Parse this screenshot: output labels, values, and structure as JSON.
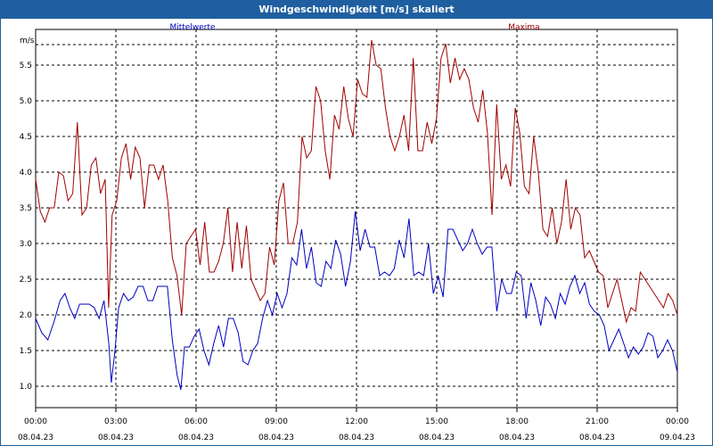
{
  "window": {
    "title": "Windgeschwindigkeit [m/s] skaliert"
  },
  "chart_data": {
    "type": "line",
    "ylabel": "m/s",
    "ylim": [
      0.7,
      6.0
    ],
    "y_ticks": [
      "1.0",
      "1.5",
      "2.0",
      "2.5",
      "3.0",
      "3.5",
      "4.0",
      "4.5",
      "5.0",
      "5.5"
    ],
    "y_tick_values": [
      1.0,
      1.5,
      2.0,
      2.5,
      3.0,
      3.5,
      4.0,
      4.5,
      5.0,
      5.5
    ],
    "x_ticks": [
      {
        "time": "00:00",
        "date": "08.04.23"
      },
      {
        "time": "03:00",
        "date": "08.04.23"
      },
      {
        "time": "06:00",
        "date": "08.04.23"
      },
      {
        "time": "09:00",
        "date": "08.04.23"
      },
      {
        "time": "12:00",
        "date": "08.04.23"
      },
      {
        "time": "15:00",
        "date": "08.04.23"
      },
      {
        "time": "18:00",
        "date": "08.04.23"
      },
      {
        "time": "21:00",
        "date": "08.04.23"
      },
      {
        "time": "00:00",
        "date": "09.04.23"
      }
    ],
    "x_range_hours": [
      0,
      24
    ],
    "grid": true,
    "series": [
      {
        "name": "Mittelwerte",
        "color": "#0000c0",
        "points": [
          [
            0,
            1.95
          ],
          [
            0.25,
            1.75
          ],
          [
            0.5,
            1.65
          ],
          [
            0.75,
            1.9
          ],
          [
            1.0,
            2.2
          ],
          [
            1.2,
            2.3
          ],
          [
            1.4,
            2.1
          ],
          [
            1.6,
            1.95
          ],
          [
            1.8,
            2.15
          ],
          [
            2.0,
            2.15
          ],
          [
            2.2,
            2.15
          ],
          [
            2.4,
            2.1
          ],
          [
            2.6,
            1.95
          ],
          [
            2.8,
            2.2
          ],
          [
            3.0,
            1.6
          ],
          [
            3.1,
            1.05
          ],
          [
            3.25,
            1.5
          ],
          [
            3.4,
            2.1
          ],
          [
            3.6,
            2.3
          ],
          [
            3.8,
            2.2
          ],
          [
            4.0,
            2.25
          ],
          [
            4.2,
            2.4
          ],
          [
            4.4,
            2.4
          ],
          [
            4.6,
            2.2
          ],
          [
            4.8,
            2.2
          ],
          [
            5.0,
            2.4
          ],
          [
            5.2,
            2.4
          ],
          [
            5.4,
            2.4
          ],
          [
            5.6,
            1.65
          ],
          [
            5.8,
            1.15
          ],
          [
            5.95,
            0.95
          ],
          [
            6.1,
            1.55
          ],
          [
            6.3,
            1.55
          ],
          [
            6.5,
            1.7
          ],
          [
            6.7,
            1.8
          ],
          [
            6.9,
            1.5
          ],
          [
            7.1,
            1.3
          ],
          [
            7.3,
            1.6
          ],
          [
            7.5,
            1.85
          ],
          [
            7.7,
            1.55
          ],
          [
            7.9,
            1.95
          ],
          [
            8.1,
            1.95
          ],
          [
            8.3,
            1.75
          ],
          [
            8.5,
            1.35
          ],
          [
            8.7,
            1.3
          ],
          [
            8.9,
            1.5
          ],
          [
            9.1,
            1.6
          ],
          [
            9.3,
            1.95
          ],
          [
            9.5,
            2.2
          ],
          [
            9.7,
            2.0
          ],
          [
            9.9,
            2.3
          ],
          [
            10.1,
            2.1
          ],
          [
            10.3,
            2.3
          ],
          [
            10.5,
            2.8
          ],
          [
            10.7,
            2.7
          ],
          [
            10.9,
            3.2
          ],
          [
            11.1,
            2.65
          ],
          [
            11.3,
            2.95
          ],
          [
            11.5,
            2.45
          ],
          [
            11.7,
            2.4
          ],
          [
            11.9,
            2.75
          ],
          [
            12.1,
            2.65
          ],
          [
            12.3,
            3.05
          ],
          [
            12.5,
            2.85
          ],
          [
            12.7,
            2.4
          ],
          [
            12.9,
            2.75
          ],
          [
            13.1,
            3.45
          ],
          [
            13.3,
            2.9
          ],
          [
            13.5,
            3.2
          ],
          [
            13.7,
            2.95
          ],
          [
            13.9,
            2.95
          ],
          [
            14.1,
            2.55
          ],
          [
            14.3,
            2.6
          ],
          [
            14.5,
            2.55
          ],
          [
            14.7,
            2.65
          ],
          [
            14.9,
            3.05
          ],
          [
            15.1,
            2.8
          ],
          [
            15.3,
            3.35
          ],
          [
            15.5,
            2.55
          ],
          [
            15.7,
            2.6
          ],
          [
            15.9,
            2.55
          ],
          [
            16.1,
            3.0
          ],
          [
            16.3,
            2.3
          ],
          [
            16.5,
            2.55
          ],
          [
            16.7,
            2.25
          ],
          [
            16.9,
            3.2
          ],
          [
            17.1,
            3.2
          ],
          [
            17.3,
            3.05
          ],
          [
            17.5,
            2.9
          ],
          [
            17.7,
            3.0
          ],
          [
            17.9,
            3.2
          ],
          [
            18.1,
            3.0
          ],
          [
            18.3,
            2.85
          ],
          [
            18.5,
            2.95
          ],
          [
            18.7,
            2.95
          ],
          [
            18.9,
            2.05
          ],
          [
            19.1,
            2.5
          ],
          [
            19.3,
            2.3
          ],
          [
            19.5,
            2.3
          ],
          [
            19.7,
            2.6
          ],
          [
            19.9,
            2.55
          ],
          [
            20.1,
            1.95
          ],
          [
            20.3,
            2.45
          ],
          [
            20.5,
            2.2
          ],
          [
            20.7,
            1.85
          ],
          [
            20.9,
            2.25
          ],
          [
            21.1,
            2.15
          ],
          [
            21.3,
            1.95
          ],
          [
            21.5,
            2.3
          ],
          [
            21.7,
            2.15
          ],
          [
            21.9,
            2.4
          ],
          [
            22.1,
            2.55
          ],
          [
            22.3,
            2.3
          ],
          [
            22.5,
            2.45
          ],
          [
            22.7,
            2.15
          ],
          [
            22.9,
            2.05
          ],
          [
            23.1,
            2.0
          ],
          [
            23.3,
            1.85
          ],
          [
            23.5,
            1.5
          ],
          [
            23.7,
            1.65
          ],
          [
            23.9,
            1.8
          ],
          [
            24.1,
            1.6
          ],
          [
            24.3,
            1.4
          ],
          [
            24.5,
            1.55
          ],
          [
            24.7,
            1.45
          ],
          [
            24.9,
            1.55
          ],
          [
            25.1,
            1.75
          ],
          [
            25.3,
            1.7
          ],
          [
            25.5,
            1.4
          ],
          [
            25.7,
            1.5
          ],
          [
            25.9,
            1.65
          ],
          [
            26.1,
            1.5
          ],
          [
            26.3,
            1.2
          ]
        ]
      },
      {
        "name": "Maxima",
        "color": "#a00000",
        "points": [
          [
            0,
            3.9
          ],
          [
            0.2,
            3.45
          ],
          [
            0.4,
            3.3
          ],
          [
            0.6,
            3.5
          ],
          [
            0.8,
            3.5
          ],
          [
            1.0,
            4.0
          ],
          [
            1.2,
            3.95
          ],
          [
            1.4,
            3.6
          ],
          [
            1.6,
            3.7
          ],
          [
            1.8,
            4.7
          ],
          [
            2.0,
            3.4
          ],
          [
            2.2,
            3.5
          ],
          [
            2.4,
            4.1
          ],
          [
            2.6,
            4.2
          ],
          [
            2.8,
            3.7
          ],
          [
            3.0,
            3.9
          ],
          [
            3.15,
            2.1
          ],
          [
            3.3,
            3.4
          ],
          [
            3.5,
            3.6
          ],
          [
            3.7,
            4.2
          ],
          [
            3.9,
            4.4
          ],
          [
            4.1,
            3.9
          ],
          [
            4.3,
            4.35
          ],
          [
            4.5,
            4.2
          ],
          [
            4.7,
            3.5
          ],
          [
            4.9,
            4.1
          ],
          [
            5.1,
            4.1
          ],
          [
            5.3,
            3.9
          ],
          [
            5.5,
            4.1
          ],
          [
            5.7,
            3.6
          ],
          [
            5.9,
            2.8
          ],
          [
            6.1,
            2.55
          ],
          [
            6.3,
            2.0
          ],
          [
            6.5,
            3.0
          ],
          [
            6.7,
            3.1
          ],
          [
            6.9,
            3.2
          ],
          [
            7.1,
            2.7
          ],
          [
            7.3,
            3.3
          ],
          [
            7.5,
            2.6
          ],
          [
            7.7,
            2.6
          ],
          [
            7.9,
            2.75
          ],
          [
            8.1,
            3.0
          ],
          [
            8.3,
            3.5
          ],
          [
            8.5,
            2.6
          ],
          [
            8.7,
            3.3
          ],
          [
            8.9,
            2.65
          ],
          [
            9.1,
            3.25
          ],
          [
            9.3,
            2.5
          ],
          [
            9.5,
            2.35
          ],
          [
            9.7,
            2.2
          ],
          [
            9.9,
            2.3
          ],
          [
            10.1,
            2.95
          ],
          [
            10.3,
            2.7
          ],
          [
            10.5,
            3.6
          ],
          [
            10.7,
            3.85
          ],
          [
            10.9,
            3.0
          ],
          [
            11.1,
            3.0
          ],
          [
            11.3,
            3.3
          ],
          [
            11.5,
            4.5
          ],
          [
            11.7,
            4.2
          ],
          [
            11.9,
            4.3
          ],
          [
            12.1,
            5.2
          ],
          [
            12.3,
            5.0
          ],
          [
            12.5,
            4.3
          ],
          [
            12.7,
            3.9
          ],
          [
            12.9,
            4.8
          ],
          [
            13.1,
            4.6
          ],
          [
            13.3,
            5.2
          ],
          [
            13.5,
            4.75
          ],
          [
            13.7,
            4.5
          ],
          [
            13.9,
            5.3
          ],
          [
            14.1,
            5.1
          ],
          [
            14.3,
            5.05
          ],
          [
            14.5,
            5.85
          ],
          [
            14.7,
            5.5
          ],
          [
            14.9,
            5.45
          ],
          [
            15.1,
            4.9
          ],
          [
            15.3,
            4.5
          ],
          [
            15.5,
            4.3
          ],
          [
            15.7,
            4.5
          ],
          [
            15.9,
            4.8
          ],
          [
            16.1,
            4.3
          ],
          [
            16.3,
            5.6
          ],
          [
            16.5,
            4.3
          ],
          [
            16.7,
            4.3
          ],
          [
            16.9,
            4.7
          ],
          [
            17.1,
            4.4
          ],
          [
            17.3,
            4.75
          ],
          [
            17.5,
            5.6
          ],
          [
            17.7,
            5.8
          ],
          [
            17.9,
            5.25
          ],
          [
            18.1,
            5.6
          ],
          [
            18.3,
            5.3
          ],
          [
            18.5,
            5.45
          ],
          [
            18.7,
            5.3
          ],
          [
            18.9,
            4.9
          ],
          [
            19.1,
            4.7
          ],
          [
            19.3,
            5.15
          ],
          [
            19.5,
            4.55
          ],
          [
            19.7,
            3.4
          ],
          [
            19.9,
            4.95
          ],
          [
            20.1,
            3.9
          ],
          [
            20.3,
            4.1
          ],
          [
            20.5,
            3.8
          ],
          [
            20.7,
            4.9
          ],
          [
            20.9,
            4.55
          ],
          [
            21.1,
            3.8
          ],
          [
            21.3,
            3.7
          ],
          [
            21.5,
            4.5
          ],
          [
            21.7,
            4.0
          ],
          [
            21.9,
            3.2
          ],
          [
            22.1,
            3.1
          ],
          [
            22.3,
            3.5
          ],
          [
            22.5,
            3.0
          ],
          [
            22.7,
            3.3
          ],
          [
            22.9,
            3.9
          ],
          [
            23.1,
            3.2
          ],
          [
            23.3,
            3.5
          ],
          [
            23.5,
            3.4
          ],
          [
            23.7,
            2.8
          ],
          [
            23.9,
            2.9
          ],
          [
            24.1,
            2.75
          ],
          [
            24.3,
            2.6
          ],
          [
            24.5,
            2.55
          ],
          [
            24.7,
            2.1
          ],
          [
            24.9,
            2.3
          ],
          [
            25.1,
            2.5
          ],
          [
            25.3,
            2.2
          ],
          [
            25.5,
            1.9
          ],
          [
            25.7,
            2.1
          ],
          [
            25.9,
            2.05
          ],
          [
            26.1,
            2.6
          ],
          [
            26.3,
            2.5
          ],
          [
            26.5,
            2.4
          ],
          [
            26.7,
            2.3
          ],
          [
            26.9,
            2.2
          ],
          [
            27.1,
            2.1
          ],
          [
            27.3,
            2.3
          ],
          [
            27.5,
            2.2
          ],
          [
            27.7,
            2.0
          ]
        ]
      }
    ]
  }
}
